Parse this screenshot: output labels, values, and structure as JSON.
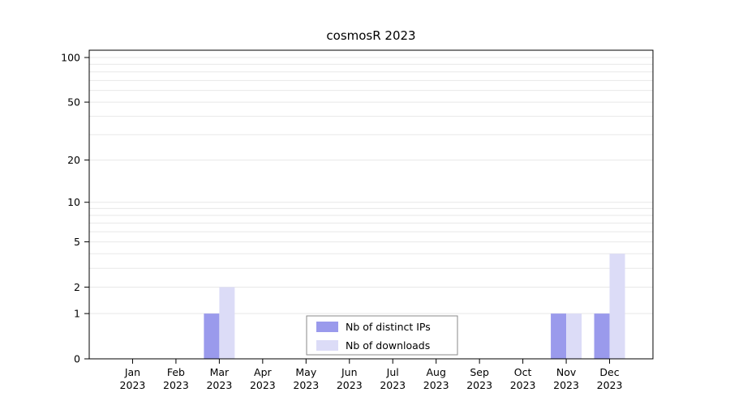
{
  "figure": {
    "title": "cosmosR 2023"
  },
  "chart_data": {
    "type": "bar",
    "title": "cosmosR 2023",
    "categories": [
      "Jan",
      "Feb",
      "Mar",
      "Apr",
      "May",
      "Jun",
      "Jul",
      "Aug",
      "Sep",
      "Oct",
      "Nov",
      "Dec"
    ],
    "year": "2023",
    "series": [
      {
        "name": "Nb of distinct IPs",
        "color": "#9a9aec",
        "values": [
          0,
          0,
          1,
          0,
          0,
          0,
          0,
          0,
          0,
          0,
          1,
          1
        ]
      },
      {
        "name": "Nb of downloads",
        "color": "#dcdcf7",
        "values": [
          0,
          0,
          2,
          0,
          0,
          0,
          0,
          0,
          0,
          0,
          1,
          4
        ]
      }
    ],
    "y_scale": "log10(value+1)",
    "ylim": [
      0,
      100
    ],
    "y_ticks": [
      0,
      1,
      2,
      5,
      10,
      20,
      50,
      100
    ],
    "y_gridlines": [
      1,
      2,
      3,
      4,
      5,
      6,
      7,
      8,
      9,
      10,
      20,
      30,
      40,
      50,
      60,
      70,
      80,
      90,
      100
    ],
    "grid": "horizontal-light",
    "legend": {
      "position": "inside-bottom-center",
      "entries": [
        "Nb of distinct IPs",
        "Nb of downloads"
      ]
    }
  }
}
